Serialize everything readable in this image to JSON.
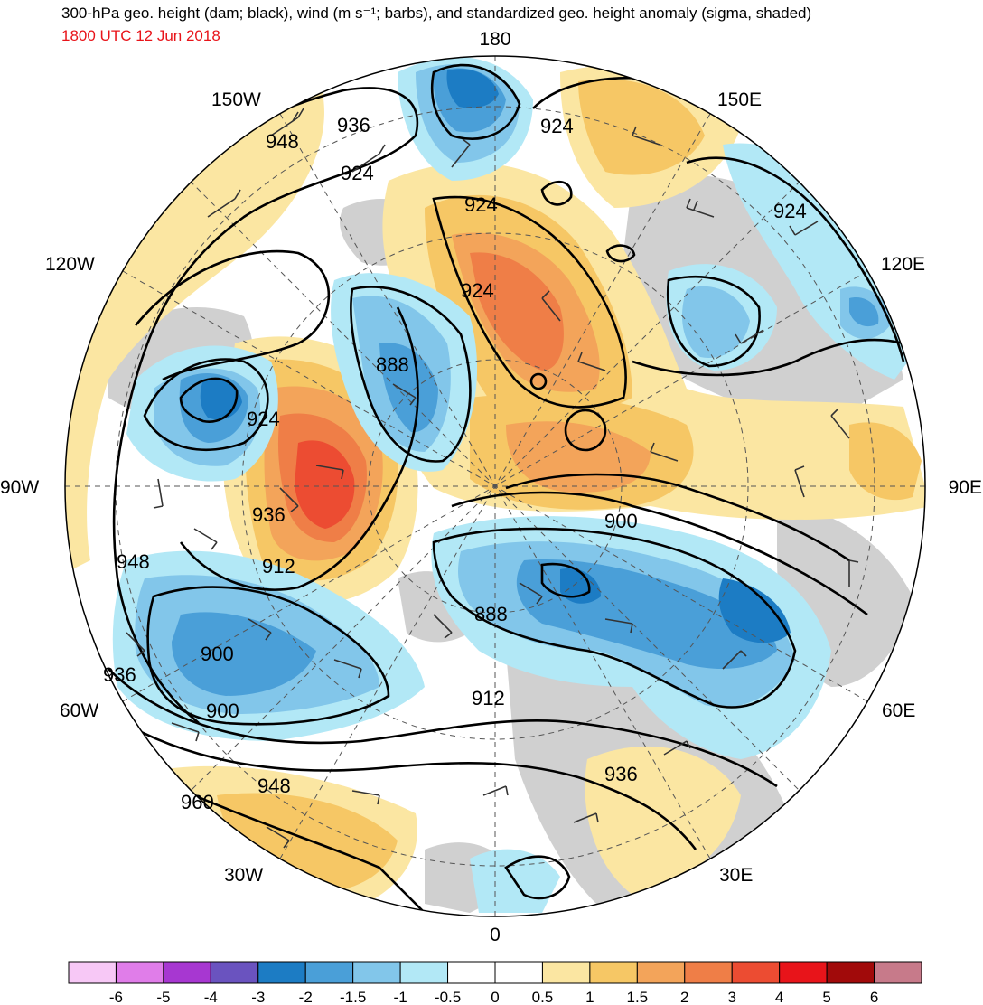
{
  "header": {
    "title": "300-hPa geo. height (dam; black), wind (m s⁻¹; barbs), and standardized geo. height anomaly (sigma, shaded)",
    "datetime": "1800 UTC 12 Jun 2018"
  },
  "map": {
    "projection": "north-polar-stereographic",
    "longitude_labels": {
      "top": "180",
      "bottom": "0",
      "left": "90W",
      "right": "90E",
      "upper_left_1": "150W",
      "upper_left_2": "120W",
      "upper_right_1": "150E",
      "upper_right_2": "120E",
      "lower_left_1": "60W",
      "lower_left_2": "30W",
      "lower_right_1": "60E",
      "lower_right_2": "30E"
    },
    "contour_labels": {
      "c1": "936",
      "c2": "948",
      "c3": "924",
      "c4": "924",
      "c5": "924",
      "c6": "924",
      "c7": "924",
      "c8": "888",
      "c9": "924",
      "c10": "936",
      "c11": "912",
      "c12": "900",
      "c13": "948",
      "c14": "888",
      "c15": "900",
      "c16": "936",
      "c17": "900",
      "c18": "912",
      "c19": "936",
      "c20": "948",
      "c21": "960"
    },
    "anomaly_colors": {
      "strong_positive": "#e8402a",
      "positive": "#f3a45a",
      "weak_positive": "#fbe6a2",
      "strong_negative": "#2a7fc6",
      "negative": "#6cb6e2",
      "weak_negative": "#aee6f4",
      "land_neutral": "#d0d0d0"
    }
  },
  "colorbar": {
    "labels": [
      "-6",
      "-5",
      "-4",
      "-3",
      "-2",
      "-1.5",
      "-1",
      "-0.5",
      "0",
      "0.5",
      "1",
      "1.5",
      "2",
      "3",
      "4",
      "5",
      "6"
    ],
    "colors": [
      "#f7c8f6",
      "#e07de9",
      "#a737d1",
      "#6a53bf",
      "#1c7cc4",
      "#4a9fd8",
      "#82c6ea",
      "#b2e8f6",
      "#ffffff",
      "#ffffff",
      "#fbe6a2",
      "#f6c765",
      "#f3a45a",
      "#ef7e47",
      "#ec4c32",
      "#e8141a",
      "#a10a0a",
      "#c77a8a"
    ]
  }
}
